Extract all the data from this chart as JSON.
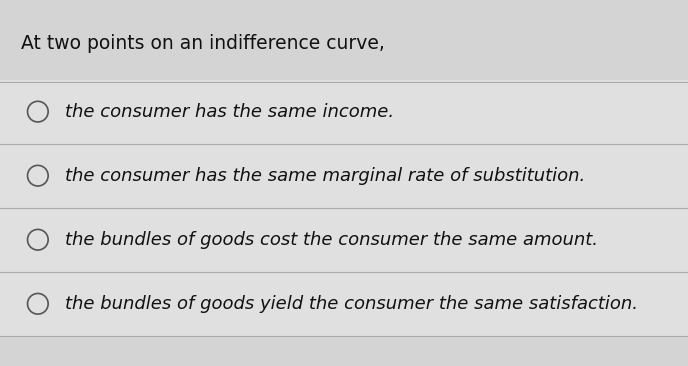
{
  "title": "At two points on an indifference curve,",
  "options": [
    "the consumer has the same income.",
    "the consumer has the same marginal rate of substitution.",
    "the bundles of goods cost the consumer the same amount.",
    "the bundles of goods yield the consumer the same satisfaction."
  ],
  "bg_color": "#d4d4d4",
  "row_bg_color": "#e0e0e0",
  "title_fontsize": 13.5,
  "option_fontsize": 13.0,
  "title_color": "#111111",
  "option_color": "#111111",
  "circle_color": "#555555",
  "line_color": "#aaaaaa",
  "figsize": [
    6.88,
    3.66
  ],
  "dpi": 100
}
